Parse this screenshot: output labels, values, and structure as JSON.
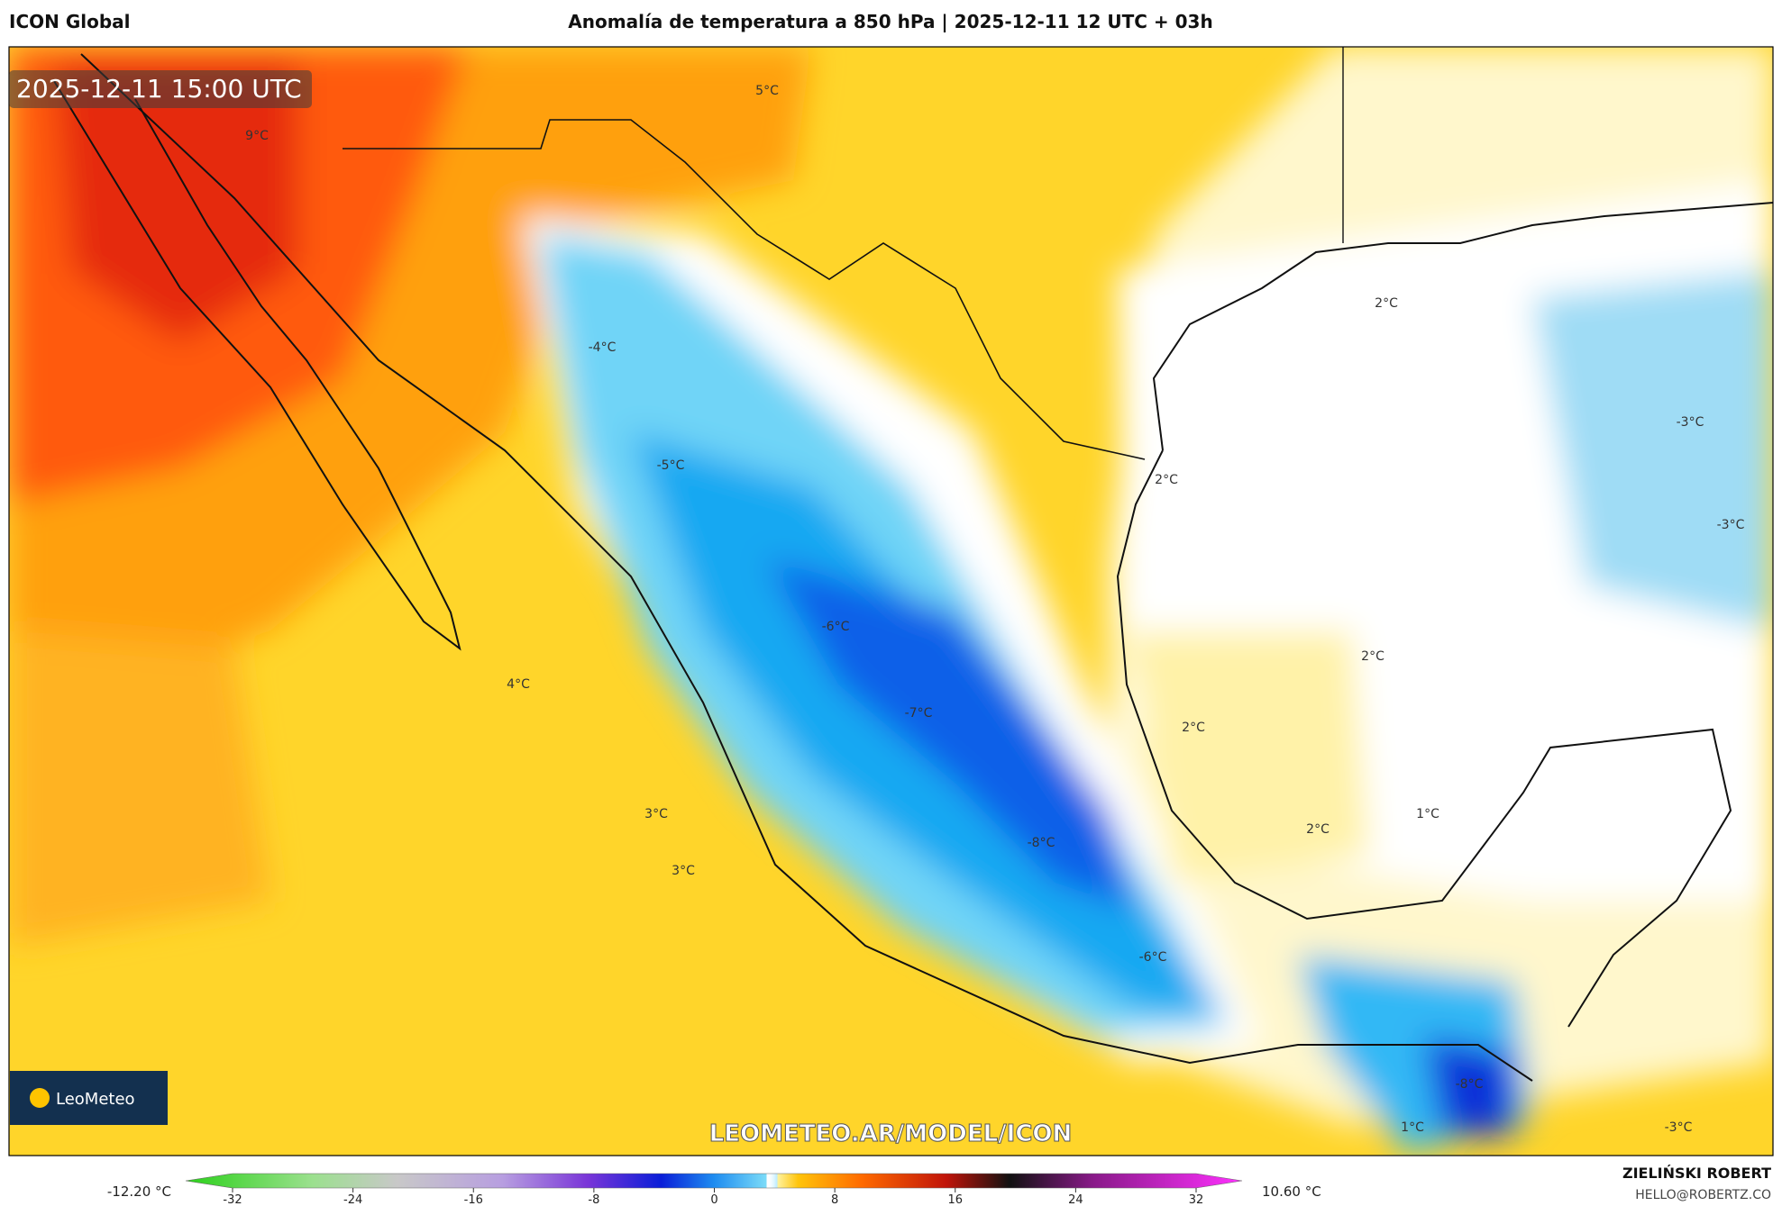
{
  "header": {
    "model": "ICON Global",
    "title": "Anomalía de temperatura a 850 hPa | 2025-12-11 12 UTC + 03h"
  },
  "timestamp": "2025-12-11 15:00 UTC",
  "map_labels": [
    "5°C",
    "9°C",
    "-4°C",
    "-5°C",
    "-6°C",
    "4°C",
    "-7°C",
    "3°C",
    "3°C",
    "-8°C",
    "-6°C",
    "2°C",
    "2°C",
    "-3°C",
    "-3°C",
    "2°C",
    "2°C",
    "2°C",
    "1°C",
    "-8°C",
    "1°C",
    "-3°C"
  ],
  "watermark": "LEOMETEO.AR/MODEL/ICON",
  "logo": "LeoMeteo",
  "colorbar": {
    "min_label": "-12.20 °C",
    "max_label": "10.60 °C",
    "range": [
      -32,
      32
    ],
    "ticks": [
      -32,
      -24,
      -16,
      -8,
      0,
      8,
      16,
      24,
      32
    ]
  },
  "author": {
    "name": "ZIELIŃSKI ROBERT",
    "email": "HELLO@ROBERTZ.CO"
  }
}
